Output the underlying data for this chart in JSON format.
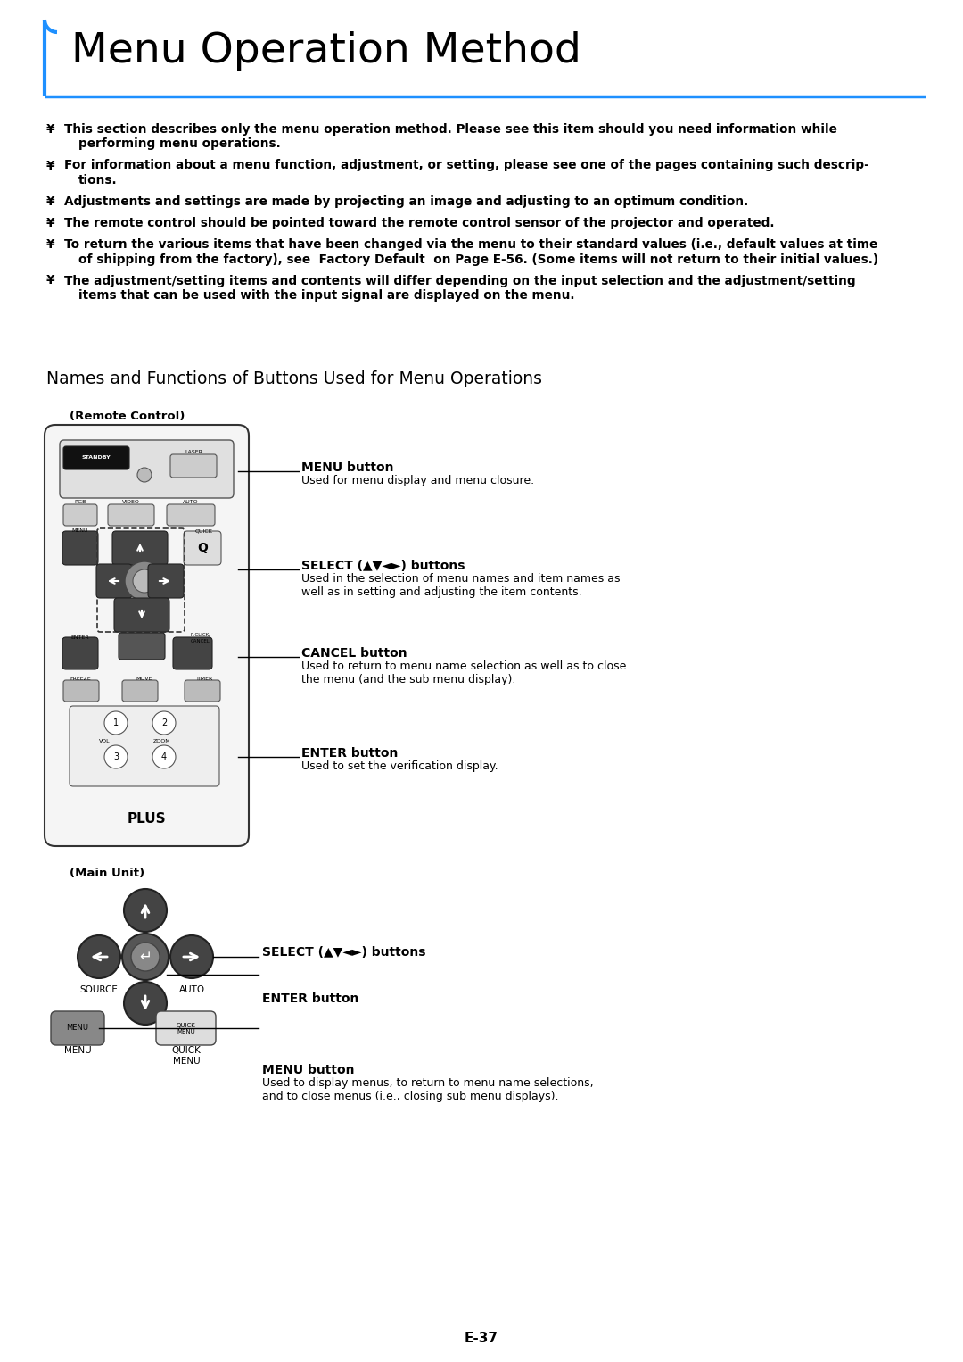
{
  "title": "Menu Operation Method",
  "title_fontsize": 34,
  "title_color": "#000000",
  "title_bar_color": "#1E90FF",
  "background_color": "#ffffff",
  "bullet_char": "¥",
  "section_title": "Names and Functions of Buttons Used for Menu Operations",
  "remote_label": "(Remote Control)",
  "main_unit_label": "(Main Unit)",
  "menu_button_label": "MENU button",
  "menu_button_desc": "Used for menu display and menu closure.",
  "select_button_label": "SELECT (▲▼◄►) buttons",
  "select_button_desc": "Used in the selection of menu names and item names as\nwell as in setting and adjusting the item contents.",
  "cancel_button_label": "CANCEL button",
  "cancel_button_desc": "Used to return to menu name selection as well as to close\nthe menu (and the sub menu display).",
  "enter_button_label": "ENTER button",
  "enter_button_desc": "Used to set the verification display.",
  "main_select_label": "SELECT (▲▼◄►) buttons",
  "main_enter_label": "ENTER button",
  "main_menu_label": "MENU button",
  "main_menu_desc": "Used to display menus, to return to menu name selections,\nand to close menus (i.e., closing sub menu displays).",
  "page_number": "E-37",
  "text_color": "#000000",
  "blue_color": "#1E90FF",
  "bullet_lines": [
    [
      "This section describes only the menu operation method. Please see this item should you need information while",
      "performing menu operations."
    ],
    [
      "For information about a menu function, adjustment, or setting, please see one of the pages containing such descrip-",
      "tions."
    ],
    [
      "Adjustments and settings are made by projecting an image and adjusting to an optimum condition."
    ],
    [
      "The remote control should be pointed toward the remote control sensor of the projector and operated."
    ],
    [
      "To return the various items that have been changed via the menu to their standard values (i.e., default values at time",
      "of shipping from the factory), see  Factory Default  on Page E-56. (Some items will not return to their initial values.)"
    ],
    [
      "The adjustment/setting items and contents will differ depending on the input selection and the adjustment/setting",
      "items that can be used with the input signal are displayed on the menu."
    ]
  ]
}
